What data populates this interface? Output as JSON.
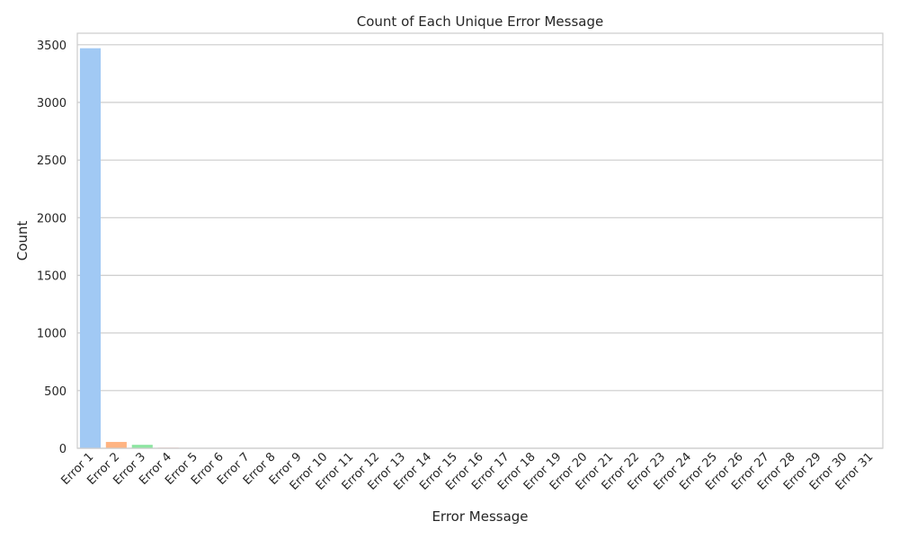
{
  "chart_data": {
    "type": "bar",
    "title": "Count of Each Unique Error Message",
    "xlabel": "Error Message",
    "ylabel": "Count",
    "ylim": [
      0,
      3600
    ],
    "yticks": [
      0,
      500,
      1000,
      1500,
      2000,
      2500,
      3000,
      3500
    ],
    "grid": true,
    "categories": [
      "Error 1",
      "Error 2",
      "Error 3",
      "Error 4",
      "Error 5",
      "Error 6",
      "Error 7",
      "Error 8",
      "Error 9",
      "Error 10",
      "Error 11",
      "Error 12",
      "Error 13",
      "Error 14",
      "Error 15",
      "Error 16",
      "Error 17",
      "Error 18",
      "Error 19",
      "Error 20",
      "Error 21",
      "Error 22",
      "Error 23",
      "Error 24",
      "Error 25",
      "Error 26",
      "Error 27",
      "Error 28",
      "Error 29",
      "Error 30",
      "Error 31"
    ],
    "values": [
      3470,
      55,
      30,
      5,
      3,
      2,
      2,
      2,
      1,
      1,
      1,
      1,
      1,
      1,
      1,
      1,
      1,
      1,
      1,
      1,
      1,
      1,
      1,
      1,
      1,
      1,
      1,
      1,
      1,
      1,
      1
    ],
    "colors": [
      "#a1c9f4",
      "#ffb482",
      "#8de5a1",
      "#ff9f9b",
      "#d0bbff",
      "#debb9b",
      "#fab0e4",
      "#cfcfcf",
      "#fffea3",
      "#b9f2f0"
    ],
    "frame_color": "#cccccc",
    "grid_color": "#cccccc"
  }
}
